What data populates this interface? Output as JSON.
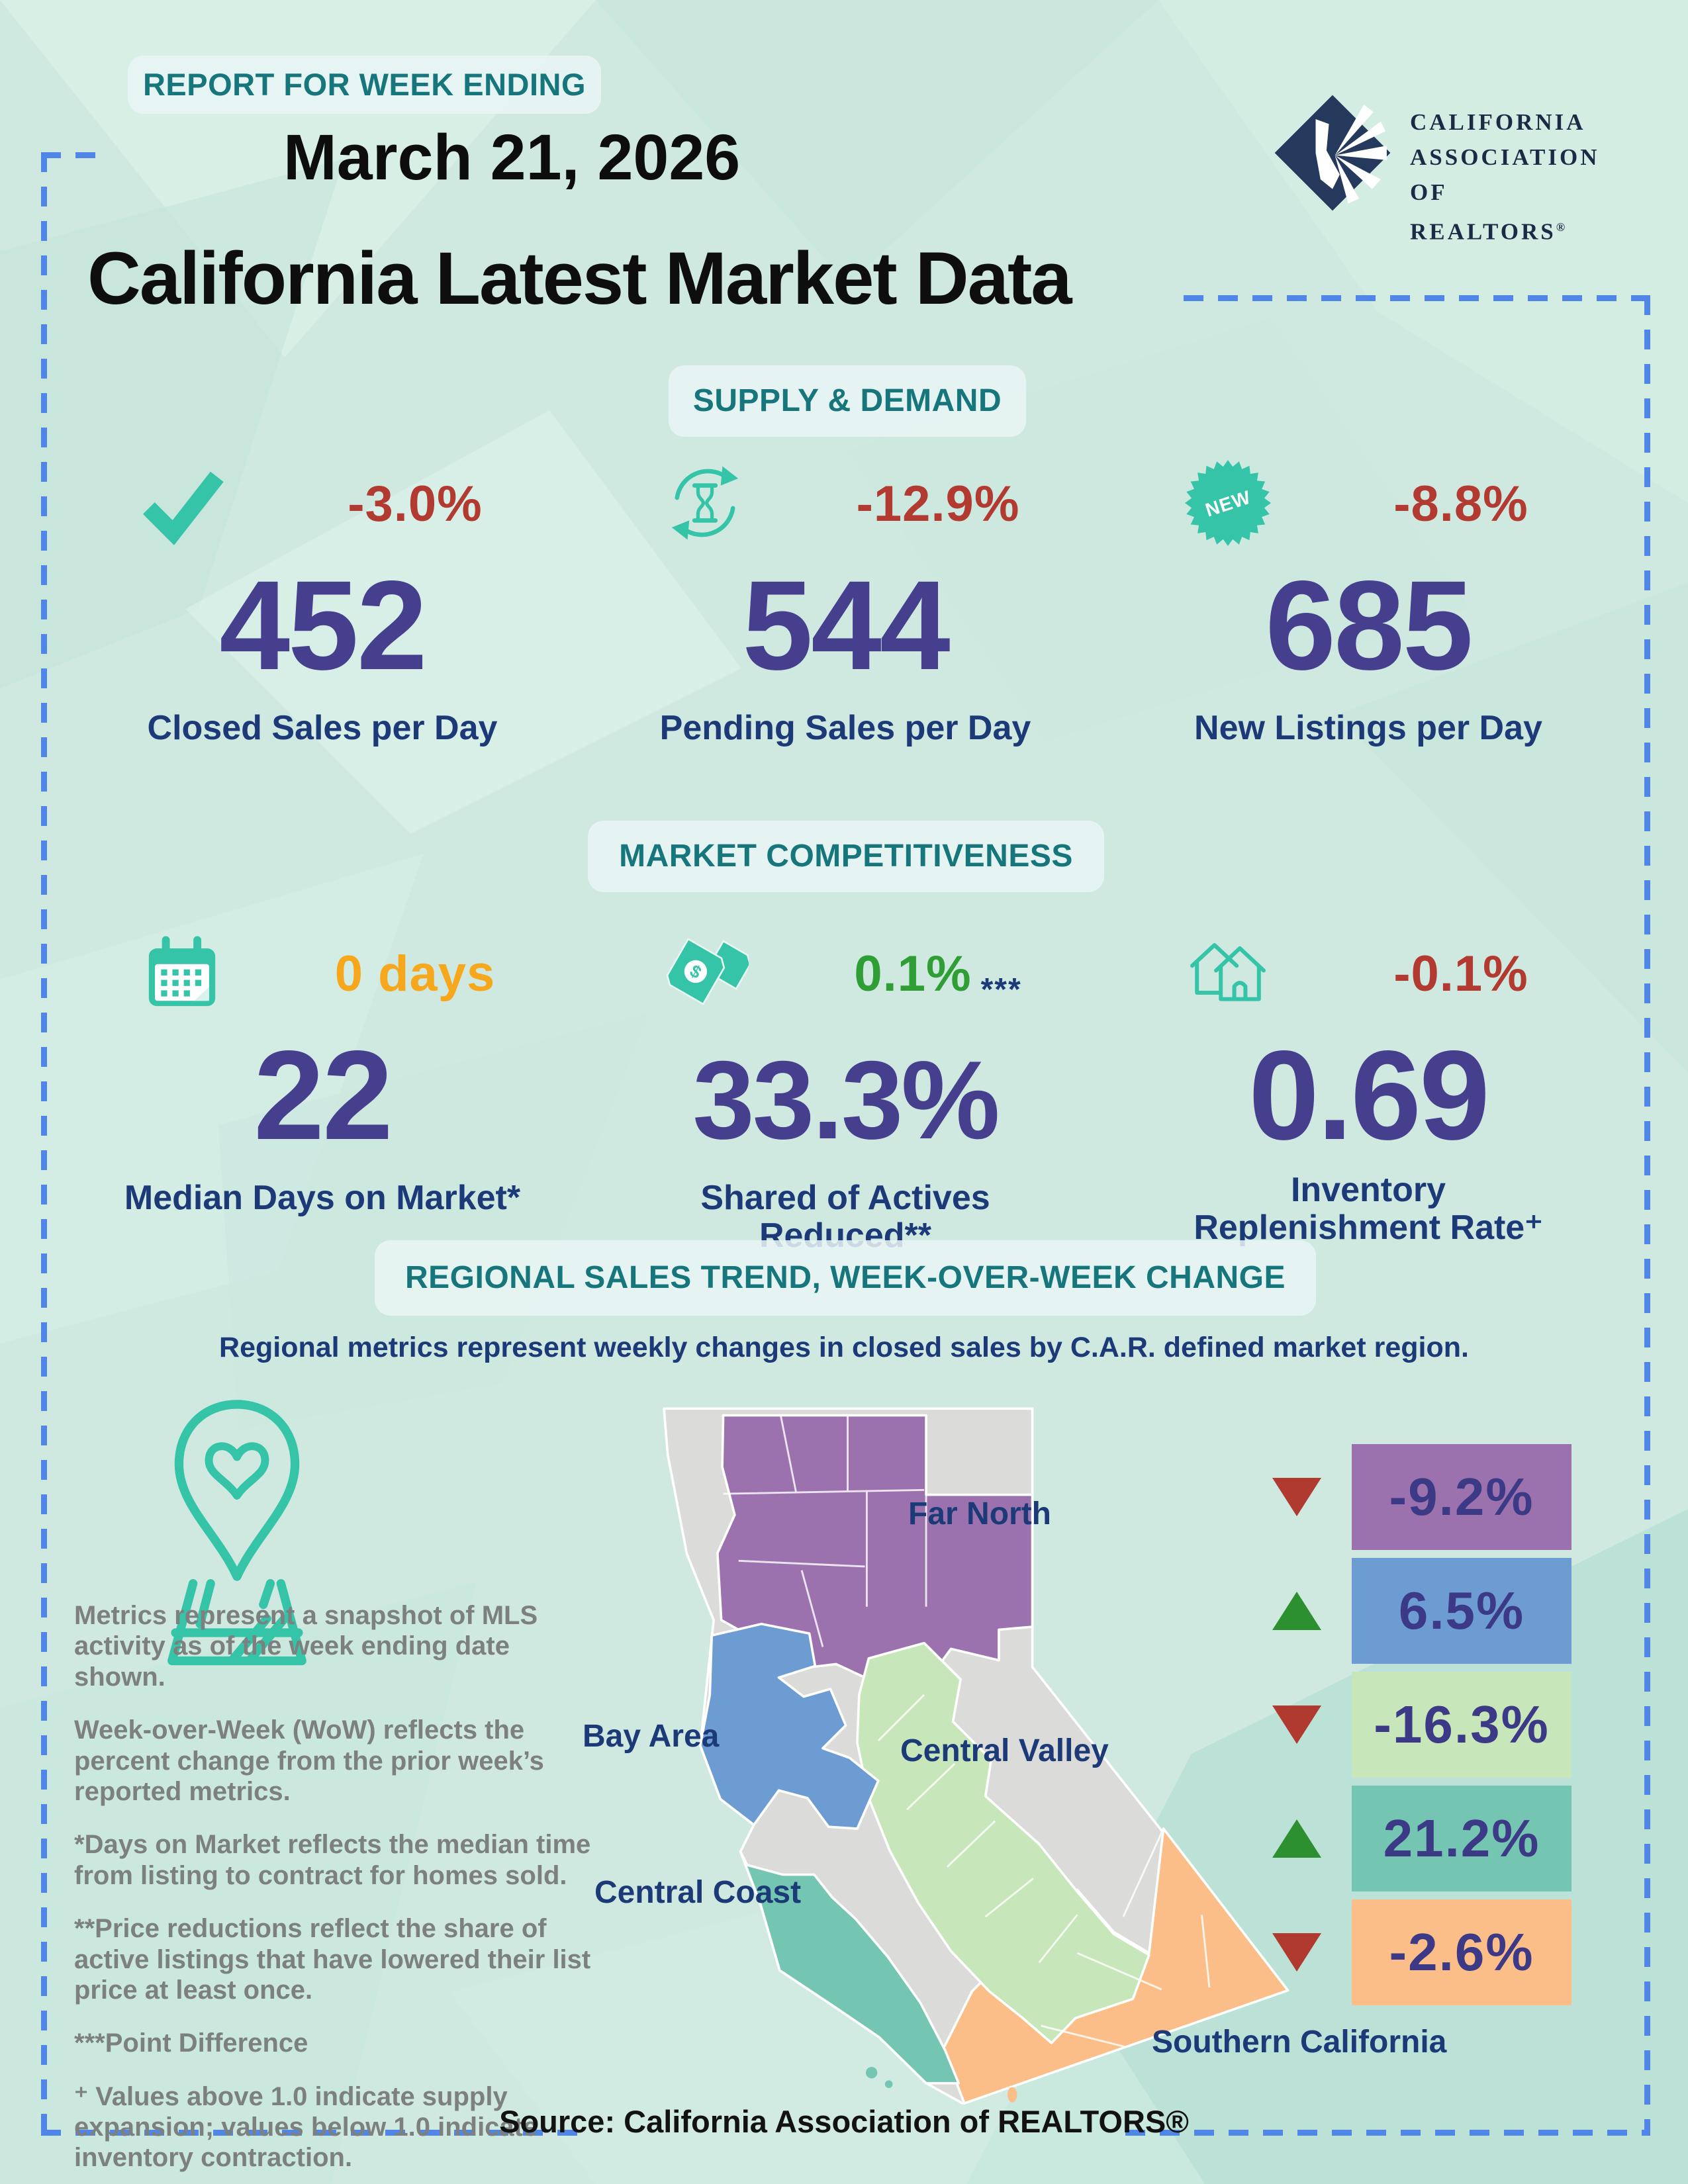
{
  "header": {
    "report_badge": "REPORT FOR WEEK ENDING",
    "date": "March 21, 2026",
    "title": "California Latest Market Data",
    "logo": {
      "line1": "CALIFORNIA",
      "line2": "ASSOCIATION",
      "line3": "OF REALTORS",
      "reg": "®"
    }
  },
  "supply_demand": {
    "section_label": "SUPPLY & DEMAND",
    "metrics": [
      {
        "icon": "check-icon",
        "change": "-3.0%",
        "value": "452",
        "label": "Closed Sales per Day"
      },
      {
        "icon": "hourglass-refresh-icon",
        "change": "-12.9%",
        "value": "544",
        "label": "Pending Sales per Day"
      },
      {
        "icon": "new-starburst-badge-icon",
        "badge_text": "NEW",
        "change": "-8.8%",
        "value": "685",
        "label": "New Listings per Day"
      }
    ]
  },
  "market_competitiveness": {
    "section_label": "MARKET COMPETITIVENESS",
    "metrics": [
      {
        "icon": "calendar-icon",
        "change": "0 days",
        "value": "22",
        "label": "Median Days on Market*"
      },
      {
        "icon": "price-tags-icon",
        "tag_symbol": "$",
        "change": "0.1%",
        "change_suffix": "***",
        "value": "33.3%",
        "label": "Shared of Actives Reduced**"
      },
      {
        "icon": "houses-icon",
        "change": "-0.1%",
        "value": "0.69",
        "label": "Inventory Replenishment Rate⁺"
      }
    ]
  },
  "regional": {
    "section_label": "REGIONAL SALES TREND, WEEK-OVER-WEEK CHANGE",
    "subtitle": "Regional metrics represent weekly changes in closed sales by C.A.R. defined market region.",
    "regions": [
      {
        "name": "Far North",
        "value": "-9.2%",
        "direction": "down",
        "color": "#9b72ae"
      },
      {
        "name": "Bay Area",
        "value": "6.5%",
        "direction": "up",
        "color": "#6d9cd2"
      },
      {
        "name": "Central Valley",
        "value": "-16.3%",
        "direction": "down",
        "color": "#c7e6b9"
      },
      {
        "name": "Central Coast",
        "value": "21.2%",
        "direction": "up",
        "color": "#74c5b1"
      },
      {
        "name": "Southern California",
        "value": "-2.6%",
        "direction": "down",
        "color": "#fcbe88"
      }
    ],
    "notes": [
      "Metrics represent a snapshot of MLS activity as of the week ending date shown.",
      "Week-over-Week (WoW) reflects the percent change from the prior week’s reported metrics.",
      "*Days on Market reflects the median time from listing to contract for homes sold.",
      "**Price reductions reflect the share of active listings that have lowered their list price at least once.",
      "***Point Difference",
      "⁺ Values above 1.0 indicate supply expansion; values below 1.0 indicate inventory contraction."
    ]
  },
  "footer": {
    "source": "Source: California Association of REALTORS®"
  },
  "colors": {
    "background": "#cfe9e1",
    "dashed_border": "#4f86e8",
    "teal_heading": "#16767c",
    "accent_teal": "#35c4a7",
    "metric_value_indigo": "#453f8e",
    "label_navy": "#1d3a78",
    "negative_red": "#b23a31",
    "positive_green": "#2f9e35",
    "warning_orange": "#f6a71c",
    "note_gray": "#7c817f",
    "map_gray": "#dbdcd9",
    "up_triangle": "#2c8f30",
    "down_triangle": "#b03a30",
    "logo_navy": "#24395c"
  },
  "chart_data": {
    "type": "table",
    "title": "California Latest Market Data — Report for week ending March 21, 2026",
    "supply_demand": [
      {
        "metric": "Closed Sales per Day",
        "value": 452,
        "wow_change_pct": -3.0
      },
      {
        "metric": "Pending Sales per Day",
        "value": 544,
        "wow_change_pct": -12.9
      },
      {
        "metric": "New Listings per Day",
        "value": 685,
        "wow_change_pct": -8.8
      }
    ],
    "market_competitiveness": [
      {
        "metric": "Median Days on Market",
        "value": 22,
        "unit": "days",
        "wow_change": "0 days"
      },
      {
        "metric": "Shared of Actives Reduced",
        "value": 33.3,
        "unit": "%",
        "wow_change_points": 0.1
      },
      {
        "metric": "Inventory Replenishment Rate",
        "value": 0.69,
        "wow_change_pct": -0.1
      }
    ],
    "regional_wow_closed_sales_change_pct": {
      "Far North": -9.2,
      "Bay Area": 6.5,
      "Central Valley": -16.3,
      "Central Coast": 21.2,
      "Southern California": -2.6
    }
  }
}
